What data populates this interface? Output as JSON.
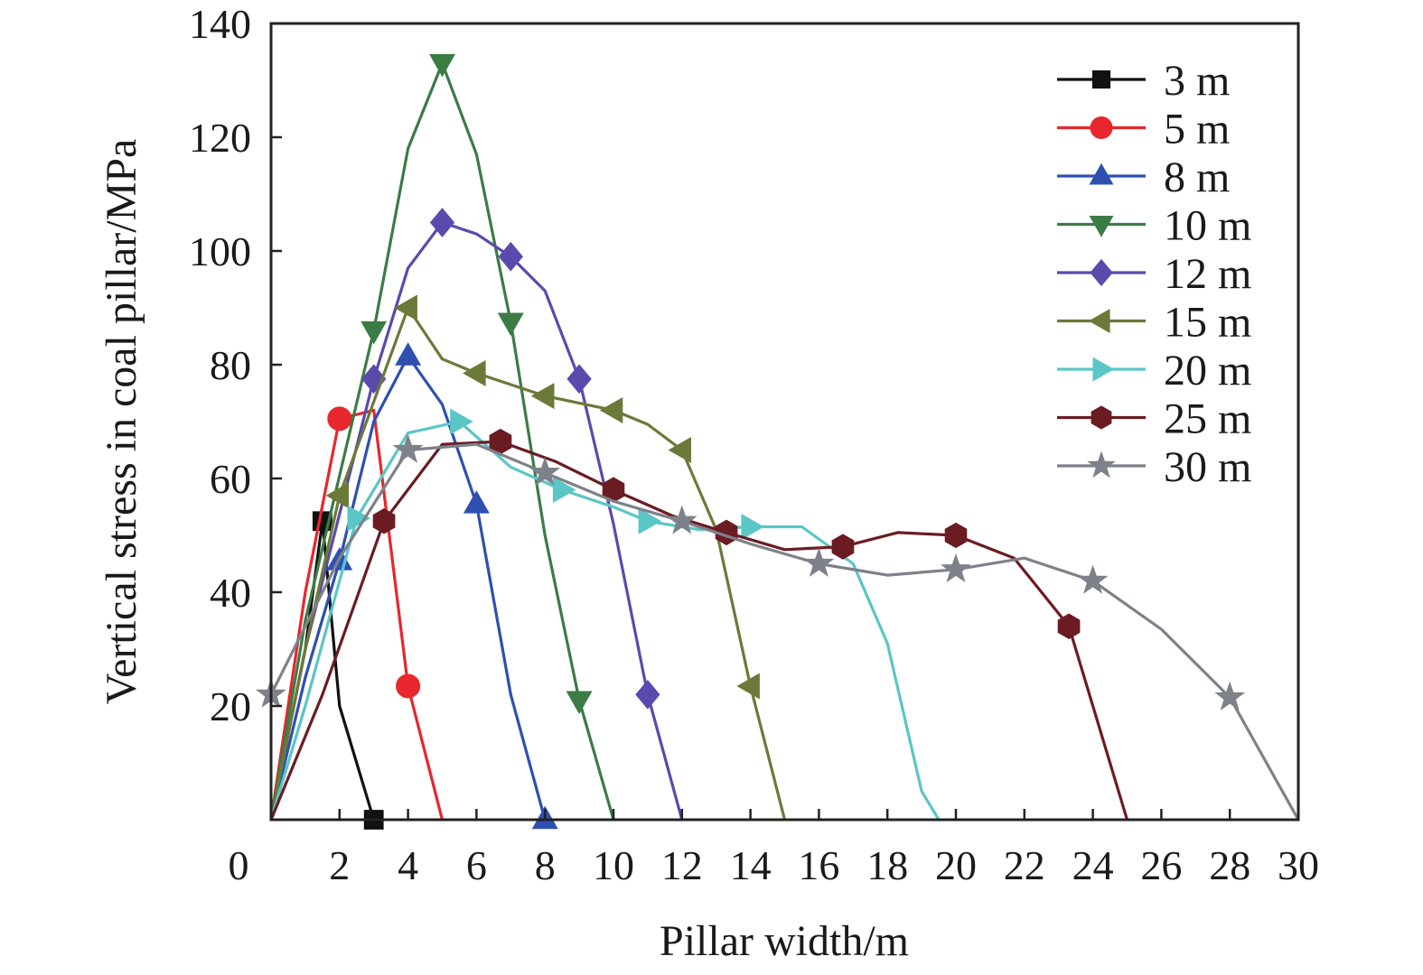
{
  "chart_data": {
    "type": "line",
    "title": "",
    "xlabel": "Pillar width/m",
    "ylabel": "Vertical stress in coal pillar/MPa",
    "xlim": [
      0,
      30
    ],
    "ylim": [
      0,
      140
    ],
    "x_ticks": [
      0,
      2,
      4,
      6,
      8,
      10,
      12,
      14,
      16,
      18,
      20,
      22,
      24,
      26,
      28,
      30
    ],
    "y_ticks": [
      20,
      40,
      60,
      80,
      100,
      120,
      140
    ],
    "x_tick_labels": [
      "0",
      "2",
      "4",
      "6",
      "8",
      "10",
      "12",
      "14",
      "16",
      "18",
      "20",
      "22",
      "24",
      "26",
      "28",
      "30"
    ],
    "y_tick_labels": [
      "20",
      "40",
      "60",
      "80",
      "100",
      "120",
      "140"
    ],
    "grid": false,
    "legend_position": "top-right",
    "series": [
      {
        "name": "3 m",
        "color": "#111111",
        "marker": "square",
        "points": [
          [
            0,
            0
          ],
          [
            1.0,
            30
          ],
          [
            1.5,
            52.5
          ],
          [
            2.0,
            20
          ],
          [
            3.0,
            0
          ]
        ],
        "marked": [
          2,
          4
        ]
      },
      {
        "name": "5 m",
        "color": "#e8262d",
        "marker": "circle",
        "points": [
          [
            0,
            0
          ],
          [
            1.0,
            40
          ],
          [
            2.0,
            70.5
          ],
          [
            3.0,
            72
          ],
          [
            4.0,
            23.5
          ],
          [
            5.0,
            0
          ]
        ],
        "marked": [
          2,
          4
        ]
      },
      {
        "name": "8 m",
        "color": "#2e50b0",
        "marker": "triangle-up",
        "points": [
          [
            0,
            0
          ],
          [
            1.0,
            25
          ],
          [
            2.0,
            45.5
          ],
          [
            3.0,
            70
          ],
          [
            4.0,
            81.5
          ],
          [
            5.0,
            73
          ],
          [
            6.0,
            55.5
          ],
          [
            7.0,
            22
          ],
          [
            8.0,
            0
          ]
        ],
        "marked": [
          2,
          4,
          6,
          8
        ]
      },
      {
        "name": "10 m",
        "color": "#3b7c45",
        "marker": "triangle-down",
        "points": [
          [
            0,
            0
          ],
          [
            1.0,
            35
          ],
          [
            3.0,
            86
          ],
          [
            4.0,
            118
          ],
          [
            5.0,
            133
          ],
          [
            6.0,
            117
          ],
          [
            7.0,
            87.5
          ],
          [
            8.0,
            50
          ],
          [
            9.0,
            21
          ],
          [
            10.0,
            0
          ]
        ],
        "marked": [
          2,
          4,
          6,
          8
        ]
      },
      {
        "name": "12 m",
        "color": "#5b4aad",
        "marker": "diamond",
        "points": [
          [
            0,
            0
          ],
          [
            1.0,
            30
          ],
          [
            3.0,
            77.5
          ],
          [
            4.0,
            97
          ],
          [
            5.0,
            105
          ],
          [
            6.0,
            103
          ],
          [
            7.0,
            99
          ],
          [
            8.0,
            93
          ],
          [
            9.0,
            77.5
          ],
          [
            10.0,
            52
          ],
          [
            11.0,
            22
          ],
          [
            12.0,
            0
          ]
        ],
        "marked": [
          2,
          4,
          6,
          8,
          10
        ]
      },
      {
        "name": "15 m",
        "color": "#6b7a38",
        "marker": "triangle-left",
        "points": [
          [
            0,
            0
          ],
          [
            1.0,
            30
          ],
          [
            2.0,
            57
          ],
          [
            4.0,
            90
          ],
          [
            5.0,
            81
          ],
          [
            6.0,
            78.5
          ],
          [
            8.0,
            74.5
          ],
          [
            10.0,
            72
          ],
          [
            11.0,
            69.5
          ],
          [
            12.0,
            65
          ],
          [
            13.0,
            51
          ],
          [
            14.0,
            23.5
          ],
          [
            15.0,
            0
          ]
        ],
        "marked": [
          2,
          3,
          5,
          6,
          7,
          9,
          11
        ]
      },
      {
        "name": "20 m",
        "color": "#5ac6c6",
        "marker": "triangle-right",
        "points": [
          [
            0,
            0
          ],
          [
            1.0,
            20
          ],
          [
            2.5,
            53
          ],
          [
            4.0,
            68
          ],
          [
            5.5,
            70
          ],
          [
            7.0,
            62
          ],
          [
            8.5,
            58
          ],
          [
            10.0,
            55
          ],
          [
            11.0,
            52.5
          ],
          [
            12.5,
            51
          ],
          [
            14.0,
            51.5
          ],
          [
            15.5,
            51.5
          ],
          [
            17.0,
            45
          ],
          [
            18.0,
            31
          ],
          [
            19.0,
            5
          ],
          [
            19.5,
            0
          ]
        ],
        "marked": [
          2,
          4,
          6,
          8,
          10
        ]
      },
      {
        "name": "25 m",
        "color": "#6b1c22",
        "marker": "hexagon",
        "points": [
          [
            0,
            0
          ],
          [
            1.5,
            22
          ],
          [
            3.3,
            52.5
          ],
          [
            5.0,
            66
          ],
          [
            6.7,
            66.5
          ],
          [
            8.3,
            63
          ],
          [
            10.0,
            58
          ],
          [
            11.7,
            53.5
          ],
          [
            13.3,
            50.5
          ],
          [
            15.0,
            47.5
          ],
          [
            16.7,
            48
          ],
          [
            18.3,
            50.5
          ],
          [
            20.0,
            50
          ],
          [
            21.7,
            46
          ],
          [
            23.3,
            34
          ],
          [
            25.0,
            0
          ]
        ],
        "marked": [
          2,
          4,
          6,
          8,
          10,
          12,
          14
        ]
      },
      {
        "name": "30 m",
        "color": "#7e8189",
        "marker": "star",
        "points": [
          [
            0,
            22
          ],
          [
            2.0,
            46
          ],
          [
            4.0,
            65
          ],
          [
            6.0,
            66
          ],
          [
            8.0,
            61
          ],
          [
            10.0,
            56
          ],
          [
            12.0,
            52.5
          ],
          [
            14.0,
            48.5
          ],
          [
            16.0,
            45
          ],
          [
            18.0,
            43
          ],
          [
            20.0,
            44
          ],
          [
            22.0,
            46
          ],
          [
            24.0,
            42
          ],
          [
            26.0,
            33.5
          ],
          [
            28.0,
            21.5
          ],
          [
            30.0,
            0
          ]
        ],
        "marked": [
          0,
          2,
          4,
          6,
          8,
          10,
          12,
          14
        ]
      }
    ]
  }
}
